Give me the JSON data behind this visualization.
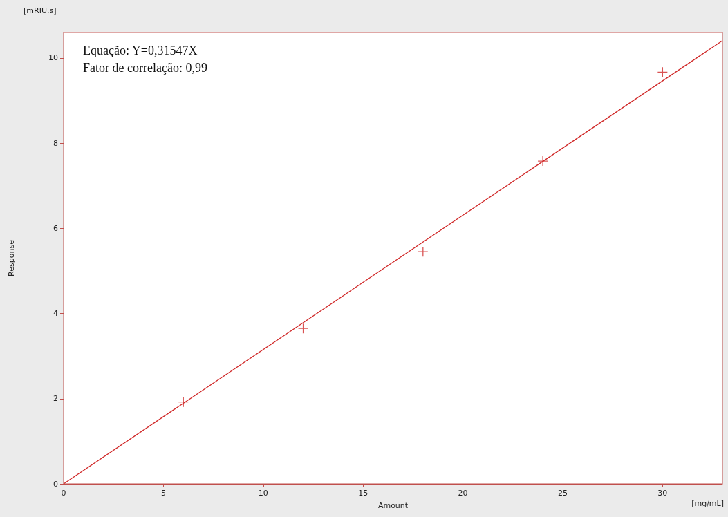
{
  "chart_data": {
    "type": "scatter",
    "xlabel": "Amount",
    "ylabel": "Response",
    "annotations": [
      "Equação: Y=0,31547X",
      "Fator de correlação: 0,99",
      "[mRIU.s]",
      "[mg/mL]"
    ],
    "series": [
      {
        "color": "#d02828",
        "x": [
          6,
          12,
          18,
          24,
          30
        ],
        "values": [
          1.92,
          3.65,
          5.45,
          7.58,
          9.67
        ]
      },
      {
        "type": "line",
        "marker": "none",
        "color": "#d02828",
        "x": [
          0,
          33
        ],
        "values": [
          0,
          10.41
        ]
      }
    ],
    "xlim": [
      0,
      33
    ],
    "xticks": [
      0,
      5,
      10,
      15,
      20,
      25,
      30
    ],
    "ylim": [
      0,
      10.6
    ],
    "yticks": [
      0,
      2,
      4,
      6,
      8,
      10
    ],
    "marker": "cross",
    "grid": false
  }
}
